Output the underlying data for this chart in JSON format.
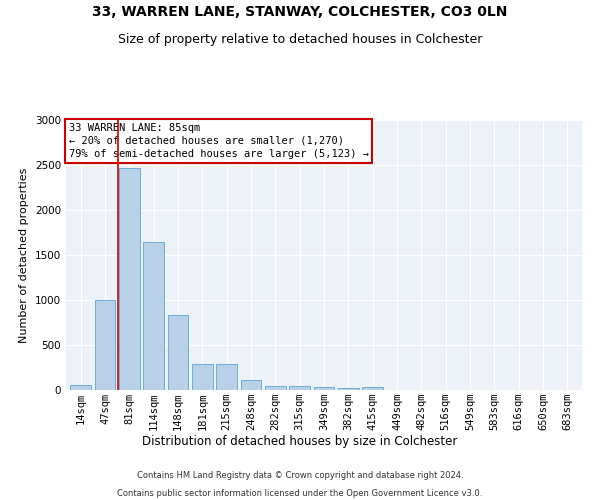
{
  "title1": "33, WARREN LANE, STANWAY, COLCHESTER, CO3 0LN",
  "title2": "Size of property relative to detached houses in Colchester",
  "xlabel": "Distribution of detached houses by size in Colchester",
  "ylabel": "Number of detached properties",
  "bins": [
    "14sqm",
    "47sqm",
    "81sqm",
    "114sqm",
    "148sqm",
    "181sqm",
    "215sqm",
    "248sqm",
    "282sqm",
    "315sqm",
    "349sqm",
    "382sqm",
    "415sqm",
    "449sqm",
    "482sqm",
    "516sqm",
    "549sqm",
    "583sqm",
    "616sqm",
    "650sqm",
    "683sqm"
  ],
  "values": [
    55,
    1000,
    2470,
    1650,
    830,
    290,
    285,
    115,
    50,
    45,
    35,
    20,
    30,
    0,
    0,
    0,
    0,
    0,
    0,
    0,
    0
  ],
  "bar_color": "#b8d0e8",
  "bar_edge_color": "#6aaed6",
  "annotation_text": "33 WARREN LANE: 85sqm\n← 20% of detached houses are smaller (1,270)\n79% of semi-detached houses are larger (5,123) →",
  "annotation_box_facecolor": "#ffffff",
  "annotation_box_edge_color": "#cc0000",
  "vline_color": "#cc0000",
  "footer1": "Contains HM Land Registry data © Crown copyright and database right 2024.",
  "footer2": "Contains public sector information licensed under the Open Government Licence v3.0.",
  "ylim": [
    0,
    3000
  ],
  "yticks": [
    0,
    500,
    1000,
    1500,
    2000,
    2500,
    3000
  ],
  "bg_color": "#edf2f9",
  "title1_fontsize": 10,
  "title2_fontsize": 9,
  "xlabel_fontsize": 8.5,
  "ylabel_fontsize": 8,
  "tick_fontsize": 7.5,
  "annotation_fontsize": 7.5,
  "footer_fontsize": 6,
  "vline_bin_index": 2
}
